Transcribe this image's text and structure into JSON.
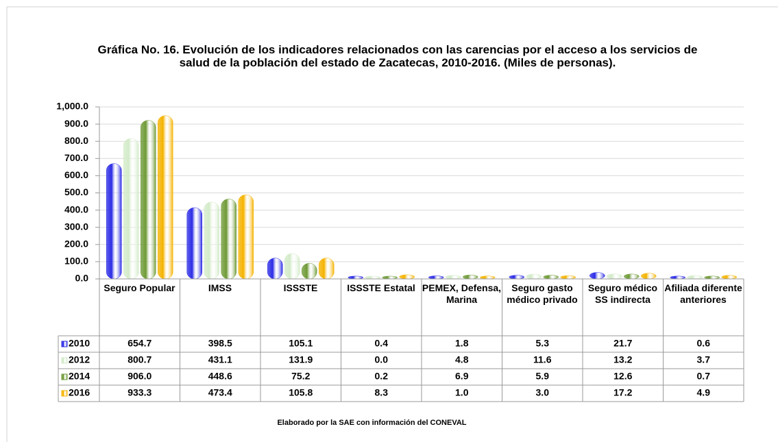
{
  "chart_data": {
    "type": "bar",
    "title": "Gráfica No. 16. Evolución de los indicadores relacionados con las carencias por el acceso a los servicios de salud de la población del estado de Zacatecas, 2010-2016. (Miles de personas).",
    "categories": [
      "Seguro Popular",
      "IMSS",
      "ISSSTE",
      "ISSSTE Estatal",
      "PEMEX, Defensa, Marina",
      "Seguro gasto médico privado",
      "Seguro médico SS indirecta",
      "Afiliada diferente anteriores"
    ],
    "series": [
      {
        "name": "2010",
        "color": "#2b2be6",
        "values": [
          654.7,
          398.5,
          105.1,
          0.4,
          1.8,
          5.3,
          21.7,
          0.6
        ],
        "value_labels": [
          "654.7",
          "398.5",
          "105.1",
          "0.4",
          "1.8",
          "5.3",
          "21.7",
          "0.6"
        ]
      },
      {
        "name": "2012",
        "color": "#d3ebc9",
        "values": [
          800.7,
          431.1,
          131.9,
          0.0,
          4.8,
          11.6,
          13.2,
          3.7
        ],
        "value_labels": [
          "800.7",
          "431.1",
          "131.9",
          "0.0",
          "4.8",
          "11.6",
          "13.2",
          "3.7"
        ]
      },
      {
        "name": "2014",
        "color": "#6e9a36",
        "values": [
          906.0,
          448.6,
          75.2,
          0.2,
          6.9,
          5.9,
          12.6,
          0.7
        ],
        "value_labels": [
          "906.0",
          "448.6",
          "75.2",
          "0.2",
          "6.9",
          "5.9",
          "12.6",
          "0.7"
        ]
      },
      {
        "name": "2016",
        "color": "#f5b300",
        "values": [
          933.3,
          473.4,
          105.8,
          8.3,
          1.0,
          3.0,
          17.2,
          4.9
        ],
        "value_labels": [
          "933.3",
          "473.4",
          "105.8",
          "8.3",
          "1.0",
          "3.0",
          "17.2",
          "4.9"
        ]
      }
    ],
    "ylim": [
      0,
      1000
    ],
    "yticks": [
      {
        "value": 0,
        "label": "0.0"
      },
      {
        "value": 100,
        "label": "100.0"
      },
      {
        "value": 200,
        "label": "200.0"
      },
      {
        "value": 300,
        "label": "300.0"
      },
      {
        "value": 400,
        "label": "400.0"
      },
      {
        "value": 500,
        "label": "500.0"
      },
      {
        "value": 600,
        "label": "600.0"
      },
      {
        "value": 700,
        "label": "700.0"
      },
      {
        "value": 800,
        "label": "800.0"
      },
      {
        "value": 900,
        "label": "900.0"
      },
      {
        "value": 1000,
        "label": "1,000.0"
      }
    ],
    "grid": true,
    "source": "Elaborado por la SAE con información del CONEVAL"
  }
}
